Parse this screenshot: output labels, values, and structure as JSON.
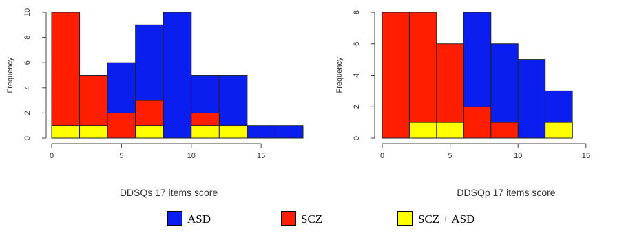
{
  "chart_data": [
    {
      "type": "bar",
      "title": "",
      "xlabel": "DDSQs 17 items score",
      "ylabel": "Frequency",
      "xlim": [
        0,
        18
      ],
      "ylim": [
        0,
        10
      ],
      "xticks": [
        0,
        5,
        10,
        15
      ],
      "yticks": [
        0,
        2,
        4,
        6,
        8,
        10
      ],
      "bins": [
        [
          0,
          2
        ],
        [
          2,
          4
        ],
        [
          4,
          6
        ],
        [
          6,
          8
        ],
        [
          8,
          10
        ],
        [
          10,
          12
        ],
        [
          12,
          14
        ],
        [
          14,
          16
        ],
        [
          16,
          18
        ]
      ],
      "series": [
        {
          "name": "ASD",
          "color": "#0a1ef0",
          "values": [
            0,
            0,
            6,
            9,
            10,
            5,
            5,
            1,
            1
          ]
        },
        {
          "name": "SCZ",
          "color": "#ff1e00",
          "values": [
            10,
            5,
            2,
            3,
            0,
            2,
            1,
            0,
            0
          ]
        },
        {
          "name": "SCZ + ASD",
          "color": "#ffff00",
          "values": [
            1,
            1,
            0,
            1,
            0,
            1,
            1,
            0,
            0
          ]
        }
      ]
    },
    {
      "type": "bar",
      "title": "",
      "xlabel": "DDSQp 17 items score",
      "ylabel": "Frequency",
      "xlim": [
        0,
        18
      ],
      "ylim": [
        0,
        8
      ],
      "xticks": [
        0,
        5,
        10,
        15
      ],
      "yticks": [
        0,
        2,
        4,
        6,
        8
      ],
      "bins": [
        [
          0,
          2
        ],
        [
          2,
          4
        ],
        [
          4,
          6
        ],
        [
          6,
          8
        ],
        [
          8,
          10
        ],
        [
          10,
          12
        ],
        [
          12,
          14
        ]
      ],
      "series": [
        {
          "name": "ASD",
          "color": "#0a1ef0",
          "values": [
            0,
            0,
            0,
            8,
            6,
            5,
            3
          ]
        },
        {
          "name": "SCZ",
          "color": "#ff1e00",
          "values": [
            8,
            8,
            6,
            2,
            1,
            0,
            1
          ]
        },
        {
          "name": "SCZ + ASD",
          "color": "#ffff00",
          "values": [
            0,
            1,
            1,
            0,
            0,
            0,
            1
          ]
        }
      ]
    }
  ],
  "legend": {
    "items": [
      {
        "label": "ASD",
        "color": "#0a1ef0"
      },
      {
        "label": "SCZ",
        "color": "#ff1e00"
      },
      {
        "label": "SCZ + ASD",
        "color": "#ffff00"
      }
    ]
  }
}
